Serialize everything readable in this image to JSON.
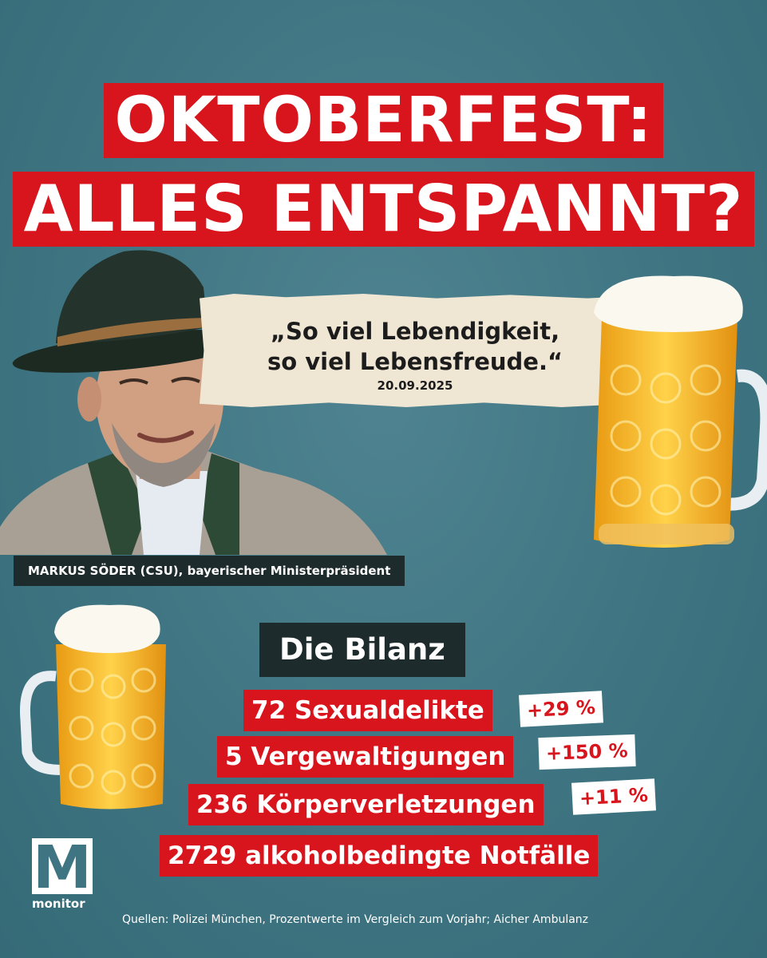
{
  "headline": {
    "line1": "OKTOBERFEST:",
    "line2": "ALLES ENTSPANNT?"
  },
  "quote": {
    "line1": "„So viel Lebendigkeit,",
    "line2": "so viel Lebensfreude.“",
    "date": "20.09.2025"
  },
  "caption": "MARKUS SÖDER (CSU), bayerischer Ministerpräsident",
  "bilanz": {
    "title": "Die Bilanz",
    "stats": [
      {
        "text": "72 Sexualdelikte",
        "change": "+29 %"
      },
      {
        "text": "5 Vergewaltigungen",
        "change": "+150 %"
      },
      {
        "text": "236 Körperverletzungen",
        "change": "+11 %"
      },
      {
        "text": "2729 alkoholbedingte Notfälle",
        "change": ""
      }
    ]
  },
  "logo": {
    "mark": "M",
    "text": "monitor"
  },
  "source": "Quellen: Polizei München, Prozentwerte im Vergleich zum Vorjahr; Aicher Ambulanz",
  "colors": {
    "accent": "#d8141c",
    "background": "#3f7582",
    "dark": "#1d2b2c",
    "paper": "#f0e6d4"
  }
}
